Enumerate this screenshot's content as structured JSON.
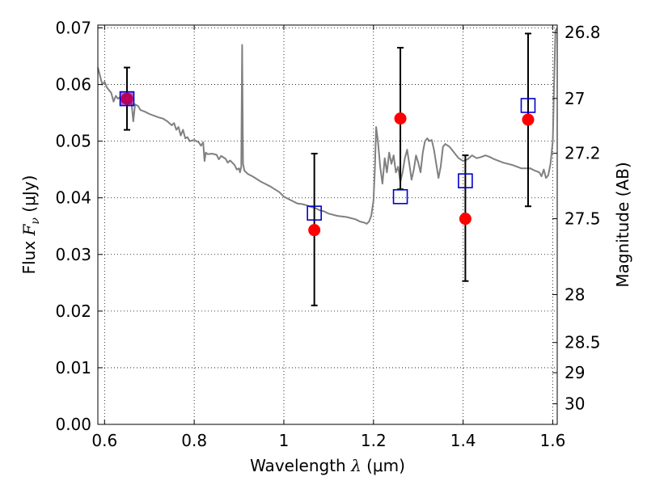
{
  "chart_data": {
    "type": "line",
    "xlabel": {
      "pre": "Wavelength ",
      "sym": "λ",
      "unit": " (μm)"
    },
    "ylabel": {
      "pre": "Flux ",
      "sym": "F",
      "sub": "ν",
      "unit": " (μJy)"
    },
    "ylabel_right": "Magnitude (AB)",
    "xlim": [
      0.585,
      1.61
    ],
    "ylim": [
      0,
      0.0705
    ],
    "grid": true,
    "x_ticks": [
      {
        "value": 0.6,
        "label": "0.6"
      },
      {
        "value": 0.8,
        "label": "0.8"
      },
      {
        "value": 1.0,
        "label": "1"
      },
      {
        "value": 1.2,
        "label": "1.2"
      },
      {
        "value": 1.4,
        "label": "1.4"
      },
      {
        "value": 1.6,
        "label": "1.6"
      }
    ],
    "y_ticks": [
      {
        "value": 0.0,
        "label": "0.00"
      },
      {
        "value": 0.01,
        "label": "0.01"
      },
      {
        "value": 0.02,
        "label": "0.02"
      },
      {
        "value": 0.03,
        "label": "0.03"
      },
      {
        "value": 0.04,
        "label": "0.04"
      },
      {
        "value": 0.05,
        "label": "0.05"
      },
      {
        "value": 0.06,
        "label": "0.06"
      },
      {
        "value": 0.07,
        "label": "0.07"
      }
    ],
    "mag_ticks": [
      {
        "value": 26.8,
        "label": "26.8"
      },
      {
        "value": 27.0,
        "label": "27"
      },
      {
        "value": 27.2,
        "label": "27.2"
      },
      {
        "value": 27.5,
        "label": "27.5"
      },
      {
        "value": 28.0,
        "label": "28"
      },
      {
        "value": 28.5,
        "label": "28.5"
      },
      {
        "value": 29.0,
        "label": "29"
      },
      {
        "value": 30.0,
        "label": "30"
      }
    ],
    "model_spectrum": {
      "color": "#808080",
      "points": [
        [
          0.585,
          0.063
        ],
        [
          0.59,
          0.0615
        ],
        [
          0.595,
          0.06
        ],
        [
          0.6,
          0.0605
        ],
        [
          0.605,
          0.0595
        ],
        [
          0.61,
          0.059
        ],
        [
          0.615,
          0.0585
        ],
        [
          0.62,
          0.057
        ],
        [
          0.625,
          0.058
        ],
        [
          0.63,
          0.0575
        ],
        [
          0.635,
          0.0578
        ],
        [
          0.64,
          0.0568
        ],
        [
          0.645,
          0.0575
        ],
        [
          0.65,
          0.0572
        ],
        [
          0.655,
          0.0565
        ],
        [
          0.66,
          0.0568
        ],
        [
          0.664,
          0.0535
        ],
        [
          0.668,
          0.0565
        ],
        [
          0.675,
          0.0562
        ],
        [
          0.68,
          0.0555
        ],
        [
          0.69,
          0.0552
        ],
        [
          0.7,
          0.0548
        ],
        [
          0.71,
          0.0545
        ],
        [
          0.72,
          0.0542
        ],
        [
          0.73,
          0.054
        ],
        [
          0.74,
          0.0535
        ],
        [
          0.75,
          0.0528
        ],
        [
          0.755,
          0.0532
        ],
        [
          0.76,
          0.052
        ],
        [
          0.765,
          0.0525
        ],
        [
          0.77,
          0.051
        ],
        [
          0.775,
          0.052
        ],
        [
          0.78,
          0.0505
        ],
        [
          0.785,
          0.0507
        ],
        [
          0.79,
          0.05
        ],
        [
          0.8,
          0.0502
        ],
        [
          0.81,
          0.0498
        ],
        [
          0.815,
          0.0492
        ],
        [
          0.82,
          0.0498
        ],
        [
          0.823,
          0.0465
        ],
        [
          0.826,
          0.048
        ],
        [
          0.83,
          0.0477
        ],
        [
          0.84,
          0.0478
        ],
        [
          0.85,
          0.0476
        ],
        [
          0.855,
          0.0468
        ],
        [
          0.86,
          0.0474
        ],
        [
          0.87,
          0.0469
        ],
        [
          0.875,
          0.0462
        ],
        [
          0.88,
          0.0466
        ],
        [
          0.89,
          0.0458
        ],
        [
          0.895,
          0.045
        ],
        [
          0.9,
          0.0452
        ],
        [
          0.902,
          0.0445
        ],
        [
          0.905,
          0.0455
        ],
        [
          0.907,
          0.067
        ],
        [
          0.909,
          0.046
        ],
        [
          0.912,
          0.0448
        ],
        [
          0.92,
          0.0442
        ],
        [
          0.93,
          0.0438
        ],
        [
          0.94,
          0.0433
        ],
        [
          0.95,
          0.0428
        ],
        [
          0.96,
          0.0424
        ],
        [
          0.97,
          0.042
        ],
        [
          0.98,
          0.0415
        ],
        [
          0.99,
          0.041
        ],
        [
          1.0,
          0.0402
        ],
        [
          1.01,
          0.0398
        ],
        [
          1.02,
          0.0394
        ],
        [
          1.03,
          0.039
        ],
        [
          1.04,
          0.0389
        ],
        [
          1.05,
          0.0387
        ],
        [
          1.06,
          0.0384
        ],
        [
          1.07,
          0.0382
        ],
        [
          1.08,
          0.0378
        ],
        [
          1.09,
          0.0376
        ],
        [
          1.1,
          0.0372
        ],
        [
          1.12,
          0.0368
        ],
        [
          1.14,
          0.0366
        ],
        [
          1.16,
          0.0362
        ],
        [
          1.17,
          0.0358
        ],
        [
          1.18,
          0.0356
        ],
        [
          1.185,
          0.0354
        ],
        [
          1.19,
          0.0358
        ],
        [
          1.195,
          0.0368
        ],
        [
          1.2,
          0.0395
        ],
        [
          1.203,
          0.045
        ],
        [
          1.206,
          0.0525
        ],
        [
          1.21,
          0.05
        ],
        [
          1.215,
          0.0455
        ],
        [
          1.22,
          0.0425
        ],
        [
          1.225,
          0.047
        ],
        [
          1.23,
          0.0445
        ],
        [
          1.235,
          0.048
        ],
        [
          1.24,
          0.046
        ],
        [
          1.245,
          0.0475
        ],
        [
          1.25,
          0.0445
        ],
        [
          1.255,
          0.0455
        ],
        [
          1.26,
          0.0428
        ],
        [
          1.265,
          0.0445
        ],
        [
          1.27,
          0.047
        ],
        [
          1.275,
          0.0485
        ],
        [
          1.28,
          0.046
        ],
        [
          1.285,
          0.0432
        ],
        [
          1.29,
          0.045
        ],
        [
          1.295,
          0.0475
        ],
        [
          1.3,
          0.0462
        ],
        [
          1.305,
          0.0445
        ],
        [
          1.31,
          0.048
        ],
        [
          1.315,
          0.05
        ],
        [
          1.32,
          0.0505
        ],
        [
          1.325,
          0.05
        ],
        [
          1.33,
          0.0502
        ],
        [
          1.335,
          0.0485
        ],
        [
          1.34,
          0.046
        ],
        [
          1.345,
          0.0435
        ],
        [
          1.35,
          0.0455
        ],
        [
          1.355,
          0.049
        ],
        [
          1.36,
          0.0495
        ],
        [
          1.37,
          0.049
        ],
        [
          1.38,
          0.048
        ],
        [
          1.39,
          0.047
        ],
        [
          1.4,
          0.0465
        ],
        [
          1.41,
          0.0468
        ],
        [
          1.42,
          0.0475
        ],
        [
          1.43,
          0.047
        ],
        [
          1.44,
          0.0472
        ],
        [
          1.45,
          0.0475
        ],
        [
          1.46,
          0.0472
        ],
        [
          1.47,
          0.0468
        ],
        [
          1.48,
          0.0465
        ],
        [
          1.49,
          0.0462
        ],
        [
          1.5,
          0.046
        ],
        [
          1.51,
          0.0458
        ],
        [
          1.52,
          0.0455
        ],
        [
          1.53,
          0.0452
        ],
        [
          1.54,
          0.0452
        ],
        [
          1.55,
          0.0452
        ],
        [
          1.56,
          0.0448
        ],
        [
          1.57,
          0.0445
        ],
        [
          1.575,
          0.0438
        ],
        [
          1.58,
          0.045
        ],
        [
          1.585,
          0.0435
        ],
        [
          1.59,
          0.044
        ],
        [
          1.595,
          0.046
        ],
        [
          1.6,
          0.05
        ],
        [
          1.603,
          0.06
        ],
        [
          1.606,
          0.0695
        ],
        [
          1.61,
          0.07
        ]
      ]
    },
    "observed": {
      "marker": "filled-circle",
      "color": "#ff0000",
      "points": [
        {
          "x": 0.65,
          "y": 0.0575,
          "yerr_low": 0.052,
          "yerr_high": 0.063
        },
        {
          "x": 1.068,
          "y": 0.0343,
          "yerr_low": 0.021,
          "yerr_high": 0.0478
        },
        {
          "x": 1.26,
          "y": 0.054,
          "yerr_low": 0.0415,
          "yerr_high": 0.0665
        },
        {
          "x": 1.405,
          "y": 0.0363,
          "yerr_low": 0.0253,
          "yerr_high": 0.0475
        },
        {
          "x": 1.545,
          "y": 0.0538,
          "yerr_low": 0.0385,
          "yerr_high": 0.069
        }
      ]
    },
    "model_photometry": {
      "marker": "open-square",
      "color": "#0000cc",
      "points": [
        {
          "x": 0.65,
          "y": 0.0575
        },
        {
          "x": 1.068,
          "y": 0.0373
        },
        {
          "x": 1.26,
          "y": 0.0402
        },
        {
          "x": 1.405,
          "y": 0.043
        },
        {
          "x": 1.545,
          "y": 0.0563
        }
      ]
    }
  }
}
